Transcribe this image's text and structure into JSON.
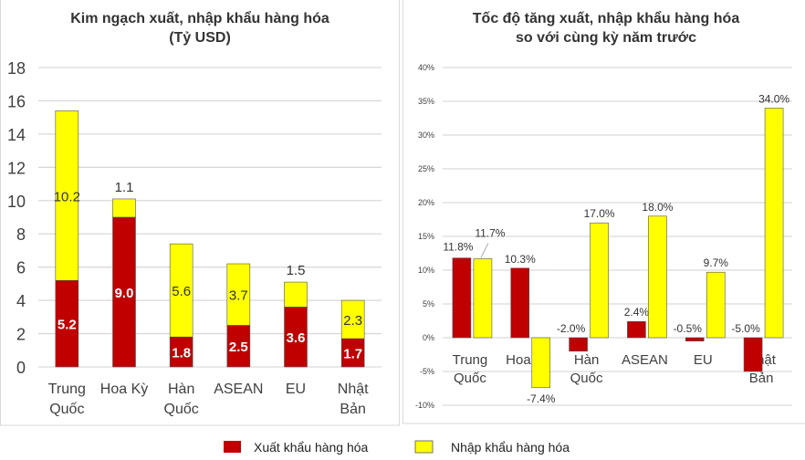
{
  "colors": {
    "export": "#C00000",
    "import": "#FFFF00",
    "grid": "#D9D9D9"
  },
  "legend": {
    "export": "Xuất khẩu hàng hóa",
    "import": "Nhập khẩu hàng hóa",
    "position": "bottom"
  },
  "chart_data": [
    {
      "type": "bar",
      "stacked": true,
      "title": "Kim ngạch xuất, nhập khẩu hàng hóa",
      "subtitle": "(Tỷ USD)",
      "categories": [
        [
          "Trung",
          "Quốc"
        ],
        [
          "Hoa Kỳ"
        ],
        [
          "Hàn",
          "Quốc"
        ],
        [
          "ASEAN"
        ],
        [
          "EU"
        ],
        [
          "Nhật",
          "Bản"
        ]
      ],
      "series": [
        {
          "name": "Xuất khẩu hàng hóa",
          "values": [
            5.2,
            9.0,
            1.8,
            2.5,
            3.6,
            1.7
          ],
          "labels": [
            "5.2",
            "9.0",
            "1.8",
            "2.5",
            "3.6",
            "1.7"
          ]
        },
        {
          "name": "Nhập khẩu hàng hóa",
          "values": [
            10.2,
            1.1,
            5.6,
            3.7,
            1.5,
            2.3
          ],
          "labels": [
            "10.2",
            "1.1",
            "5.6",
            "3.7",
            "1.5",
            "2.3"
          ]
        }
      ],
      "ylim": [
        0,
        18
      ],
      "yticks": [
        "0",
        "2",
        "4",
        "6",
        "8",
        "10",
        "12",
        "14",
        "16",
        "18"
      ],
      "grid": true
    },
    {
      "type": "bar",
      "stacked": false,
      "title": "Tốc độ tăng xuất, nhập khẩu hàng hóa",
      "subtitle": "so với cùng kỳ năm trước",
      "categories": [
        [
          "Trung",
          "Quốc"
        ],
        [
          "Hoa Kỳ"
        ],
        [
          "Hàn",
          "Quốc"
        ],
        [
          "ASEAN"
        ],
        [
          "EU"
        ],
        [
          "Nhật",
          "Bản"
        ]
      ],
      "series": [
        {
          "name": "Xuất khẩu hàng hóa",
          "values": [
            11.8,
            10.3,
            -2.0,
            2.4,
            -0.5,
            -5.0
          ],
          "labels": [
            "11.8%",
            "10.3%",
            "-2.0%",
            "2.4%",
            "-0.5%",
            "-5.0%"
          ]
        },
        {
          "name": "Nhập khẩu hàng hóa",
          "values": [
            11.7,
            -7.4,
            17.0,
            18.0,
            9.7,
            34.0
          ],
          "labels": [
            "11.7%",
            "-7.4%",
            "17.0%",
            "18.0%",
            "9.7%",
            "34.0%"
          ]
        }
      ],
      "ylim": [
        -10,
        40
      ],
      "yticks": [
        "-10%",
        "-5%",
        "0%",
        "5%",
        "10%",
        "15%",
        "20%",
        "25%",
        "30%",
        "35%",
        "40%"
      ],
      "grid": true
    }
  ]
}
